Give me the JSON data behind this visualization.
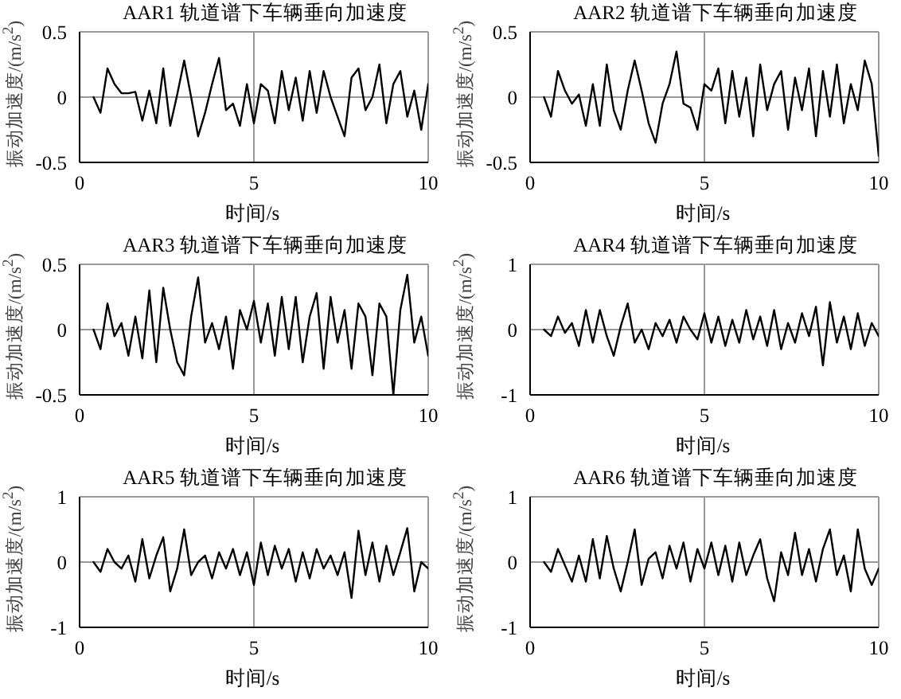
{
  "chart_data": [
    {
      "type": "line",
      "title": "AAR1 轨道谱下车辆垂向加速度",
      "xlabel": "时间/s",
      "ylabel": "振动加速度/(m/s$^{2}$)",
      "color": "#000000",
      "xlim": [
        0,
        10
      ],
      "xticks": [
        0,
        5,
        10
      ],
      "ylim": [
        -0.5,
        0.5
      ],
      "yticks": [
        -0.5,
        0,
        0.5
      ],
      "grid": true,
      "x": [
        0.4,
        0.6,
        0.8,
        1.0,
        1.2,
        1.4,
        1.6,
        1.8,
        2.0,
        2.2,
        2.4,
        2.6,
        2.8,
        3.0,
        3.2,
        3.4,
        3.6,
        3.8,
        4.0,
        4.2,
        4.4,
        4.6,
        4.8,
        5.0,
        5.2,
        5.4,
        5.6,
        5.8,
        6.0,
        6.2,
        6.4,
        6.6,
        6.8,
        7.0,
        7.2,
        7.4,
        7.6,
        7.8,
        8.0,
        8.2,
        8.4,
        8.6,
        8.8,
        9.0,
        9.2,
        9.4,
        9.6,
        9.8,
        10.0
      ],
      "values": [
        0,
        -0.12,
        0.22,
        0.1,
        0.03,
        0.03,
        0.04,
        -0.18,
        0.05,
        -0.2,
        0.22,
        -0.22,
        0.02,
        0.28,
        0,
        -0.3,
        -0.12,
        0.1,
        0.3,
        -0.1,
        -0.05,
        -0.22,
        0.1,
        -0.2,
        0.1,
        0.05,
        -0.2,
        0.2,
        -0.1,
        0.15,
        -0.18,
        0.2,
        -0.12,
        0.2,
        0,
        -0.15,
        -0.3,
        0.15,
        0.22,
        -0.1,
        0,
        0.25,
        -0.2,
        0.1,
        0.2,
        -0.15,
        0.05,
        -0.25,
        0.1
      ]
    },
    {
      "type": "line",
      "title": "AAR2 轨道谱下车辆垂向加速度",
      "xlabel": "时间/s",
      "ylabel": "振动加速度/(m/s$^{2}$)",
      "color": "#000000",
      "xlim": [
        0,
        10
      ],
      "xticks": [
        0,
        5,
        10
      ],
      "ylim": [
        -0.5,
        0.5
      ],
      "yticks": [
        -0.5,
        0,
        0.5
      ],
      "grid": true,
      "x": [
        0.4,
        0.6,
        0.8,
        1.0,
        1.2,
        1.4,
        1.6,
        1.8,
        2.0,
        2.2,
        2.4,
        2.6,
        2.8,
        3.0,
        3.2,
        3.4,
        3.6,
        3.8,
        4.0,
        4.2,
        4.4,
        4.6,
        4.8,
        5.0,
        5.2,
        5.4,
        5.6,
        5.8,
        6.0,
        6.2,
        6.4,
        6.6,
        6.8,
        7.0,
        7.2,
        7.4,
        7.6,
        7.8,
        8.0,
        8.2,
        8.4,
        8.6,
        8.8,
        9.0,
        9.2,
        9.4,
        9.6,
        9.8,
        10.0
      ],
      "values": [
        0,
        -0.15,
        0.2,
        0.05,
        -0.05,
        0.02,
        -0.22,
        0.1,
        -0.22,
        0.25,
        -0.1,
        -0.25,
        0.05,
        0.28,
        0.05,
        -0.2,
        -0.35,
        -0.05,
        0.1,
        0.35,
        -0.05,
        -0.08,
        -0.25,
        0.1,
        0.05,
        0.22,
        -0.2,
        0.2,
        -0.15,
        0.15,
        -0.3,
        0.25,
        -0.1,
        0.1,
        0.2,
        -0.25,
        0.15,
        -0.1,
        0.22,
        -0.3,
        0.2,
        -0.15,
        0.25,
        -0.2,
        0.1,
        -0.1,
        0.28,
        0.1,
        -0.45
      ]
    },
    {
      "type": "line",
      "title": "AAR3 轨道谱下车辆垂向加速度",
      "xlabel": "时间/s",
      "ylabel": "振动加速度/(m/s$^{2}$)",
      "color": "#000000",
      "xlim": [
        0,
        10
      ],
      "xticks": [
        0,
        5,
        10
      ],
      "ylim": [
        -0.5,
        0.5
      ],
      "yticks": [
        -0.5,
        0,
        0.5
      ],
      "grid": true,
      "x": [
        0.4,
        0.6,
        0.8,
        1.0,
        1.2,
        1.4,
        1.6,
        1.8,
        2.0,
        2.2,
        2.4,
        2.6,
        2.8,
        3.0,
        3.2,
        3.4,
        3.6,
        3.8,
        4.0,
        4.2,
        4.4,
        4.6,
        4.8,
        5.0,
        5.2,
        5.4,
        5.6,
        5.8,
        6.0,
        6.2,
        6.4,
        6.6,
        6.8,
        7.0,
        7.2,
        7.4,
        7.6,
        7.8,
        8.0,
        8.2,
        8.4,
        8.6,
        8.8,
        9.0,
        9.2,
        9.4,
        9.6,
        9.8,
        10.0
      ],
      "values": [
        0,
        -0.15,
        0.2,
        -0.05,
        0.05,
        -0.2,
        0.1,
        -0.22,
        0.3,
        -0.25,
        0.32,
        0,
        -0.25,
        -0.35,
        0.1,
        0.4,
        -0.1,
        0.05,
        -0.15,
        0.1,
        -0.3,
        0.15,
        0,
        0.22,
        -0.1,
        0.2,
        -0.2,
        0.25,
        -0.15,
        0.25,
        -0.25,
        0.1,
        0.28,
        -0.3,
        0.25,
        -0.1,
        0.15,
        -0.3,
        0.2,
        0.1,
        -0.35,
        0.2,
        0.1,
        -0.5,
        0.15,
        0.42,
        -0.1,
        0.1,
        -0.2
      ]
    },
    {
      "type": "line",
      "title": "AAR4 轨道谱下车辆垂向加速度",
      "xlabel": "时间/s",
      "ylabel": "振动加速度/(m/s$^{2}$)",
      "color": "#000000",
      "xlim": [
        0,
        10
      ],
      "xticks": [
        0,
        5,
        10
      ],
      "ylim": [
        -1,
        1
      ],
      "yticks": [
        -1,
        0,
        1
      ],
      "grid": true,
      "x": [
        0.4,
        0.6,
        0.8,
        1.0,
        1.2,
        1.4,
        1.6,
        1.8,
        2.0,
        2.2,
        2.4,
        2.6,
        2.8,
        3.0,
        3.2,
        3.4,
        3.6,
        3.8,
        4.0,
        4.2,
        4.4,
        4.6,
        4.8,
        5.0,
        5.2,
        5.4,
        5.6,
        5.8,
        6.0,
        6.2,
        6.4,
        6.6,
        6.8,
        7.0,
        7.2,
        7.4,
        7.6,
        7.8,
        8.0,
        8.2,
        8.4,
        8.6,
        8.8,
        9.0,
        9.2,
        9.4,
        9.6,
        9.8,
        10.0
      ],
      "values": [
        0,
        -0.1,
        0.2,
        -0.05,
        0.1,
        -0.25,
        0.3,
        -0.2,
        0.3,
        -0.1,
        -0.4,
        0.05,
        0.4,
        -0.2,
        0,
        -0.3,
        0.1,
        -0.1,
        0.15,
        -0.2,
        0.2,
        0,
        -0.15,
        0.25,
        -0.2,
        0.2,
        -0.25,
        0.15,
        -0.2,
        0.3,
        -0.15,
        0.2,
        -0.25,
        0.3,
        -0.3,
        0.1,
        -0.2,
        0.25,
        -0.1,
        0.35,
        -0.55,
        0.42,
        -0.2,
        0.2,
        -0.3,
        0.25,
        -0.25,
        0.1,
        -0.1
      ]
    },
    {
      "type": "line",
      "title": "AAR5 轨道谱下车辆垂向加速度",
      "xlabel": "时间/s",
      "ylabel": "振动加速度/(m/s$^{2}$)",
      "color": "#000000",
      "xlim": [
        0,
        10
      ],
      "xticks": [
        0,
        5,
        10
      ],
      "ylim": [
        -1,
        1
      ],
      "yticks": [
        -1,
        0,
        1
      ],
      "grid": true,
      "x": [
        0.4,
        0.6,
        0.8,
        1.0,
        1.2,
        1.4,
        1.6,
        1.8,
        2.0,
        2.2,
        2.4,
        2.6,
        2.8,
        3.0,
        3.2,
        3.4,
        3.6,
        3.8,
        4.0,
        4.2,
        4.4,
        4.6,
        4.8,
        5.0,
        5.2,
        5.4,
        5.6,
        5.8,
        6.0,
        6.2,
        6.4,
        6.6,
        6.8,
        7.0,
        7.2,
        7.4,
        7.6,
        7.8,
        8.0,
        8.2,
        8.4,
        8.6,
        8.8,
        9.0,
        9.2,
        9.4,
        9.6,
        9.8,
        10.0
      ],
      "values": [
        0,
        -0.15,
        0.2,
        0,
        -0.1,
        0.1,
        -0.3,
        0.35,
        -0.25,
        0.1,
        0.38,
        -0.45,
        -0.1,
        0.5,
        -0.2,
        0,
        0.1,
        -0.25,
        0.15,
        -0.1,
        0.2,
        -0.2,
        0.15,
        -0.35,
        0.3,
        -0.2,
        0.25,
        -0.1,
        0.2,
        -0.3,
        0.15,
        -0.25,
        0.2,
        -0.1,
        0.1,
        -0.2,
        0.15,
        -0.55,
        0.48,
        -0.2,
        0.3,
        -0.3,
        0.25,
        -0.2,
        0.15,
        0.52,
        -0.45,
        0,
        -0.1
      ]
    },
    {
      "type": "line",
      "title": "AAR6 轨道谱下车辆垂向加速度",
      "xlabel": "时间/s",
      "ylabel": "振动加速度/(m/s$^{2}$)",
      "color": "#000000",
      "xlim": [
        0,
        10
      ],
      "xticks": [
        0,
        5,
        10
      ],
      "ylim": [
        -1,
        1
      ],
      "yticks": [
        -1,
        0,
        1
      ],
      "grid": true,
      "x": [
        0.4,
        0.6,
        0.8,
        1.0,
        1.2,
        1.4,
        1.6,
        1.8,
        2.0,
        2.2,
        2.4,
        2.6,
        2.8,
        3.0,
        3.2,
        3.4,
        3.6,
        3.8,
        4.0,
        4.2,
        4.4,
        4.6,
        4.8,
        5.0,
        5.2,
        5.4,
        5.6,
        5.8,
        6.0,
        6.2,
        6.4,
        6.6,
        6.8,
        7.0,
        7.2,
        7.4,
        7.6,
        7.8,
        8.0,
        8.2,
        8.4,
        8.6,
        8.8,
        9.0,
        9.2,
        9.4,
        9.6,
        9.8,
        10.0
      ],
      "values": [
        0,
        -0.15,
        0.2,
        -0.05,
        -0.3,
        0.1,
        -0.3,
        0.35,
        -0.25,
        0.4,
        -0.1,
        -0.45,
        0,
        0.5,
        -0.35,
        0.05,
        0.15,
        -0.25,
        0.25,
        -0.1,
        0.3,
        -0.3,
        0.2,
        -0.1,
        0.3,
        -0.2,
        0.25,
        -0.3,
        0.3,
        -0.2,
        0.1,
        0.35,
        -0.25,
        -0.6,
        0.15,
        -0.2,
        0.45,
        -0.2,
        0.2,
        -0.3,
        0.2,
        0.5,
        -0.2,
        0.1,
        -0.45,
        0.5,
        -0.1,
        -0.35,
        -0.1
      ]
    }
  ]
}
